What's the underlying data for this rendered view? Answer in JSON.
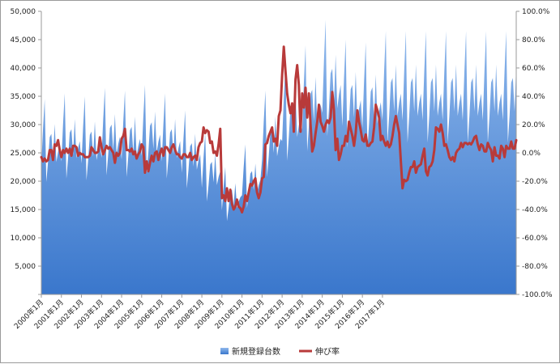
{
  "chart_data": {
    "type": "area+line",
    "title": "",
    "legend_position": "bottom",
    "grid": false,
    "colors": {
      "area_top": "#8fb8ec",
      "area_bottom": "#3a77cc",
      "line": "#b83a3a"
    },
    "left_axis": {
      "min": 0,
      "max": 50000,
      "step": 5000,
      "tick_labels": [
        "",
        "5,000",
        "10,000",
        "15,000",
        "20,000",
        "25,000",
        "30,000",
        "35,000",
        "40,000",
        "45,000",
        "50,000"
      ]
    },
    "right_axis": {
      "min": -100,
      "max": 100,
      "step": 20,
      "tick_labels": [
        "-100.0%",
        "-80.0%",
        "-60.0%",
        "-40.0%",
        "-20.0%",
        "0.0%",
        "20.0%",
        "40.0%",
        "60.0%",
        "80.0%",
        "100.0%"
      ]
    },
    "x_tick_labels": [
      "2000年1月",
      "2001年1月",
      "2002年1月",
      "2003年1月",
      "2004年1月",
      "2005年1月",
      "2006年1月",
      "2007年1月",
      "2008年1月",
      "2009年1月",
      "2010年1月",
      "2011年1月",
      "2012年1月",
      "2013年1月",
      "2014年1月",
      "2015年1月",
      "2016年1月",
      "2017年1月"
    ],
    "months_per_tick": 12,
    "series": [
      {
        "name": "新規登録台数",
        "axis": "left",
        "kind": "area",
        "annual_shape": {
          "month_factors": [
            0.78,
            1.0,
            1.18,
            0.68,
            0.8,
            0.95,
            0.97,
            0.82,
            1.03,
            0.8,
            0.86,
            0.9
          ],
          "yearly_march_peak": [
            34500,
            35500,
            35000,
            36500,
            36000,
            37000,
            35500,
            32500,
            28500,
            22500,
            26500,
            36000,
            41000,
            44000,
            48500,
            45000,
            44500,
            46500
          ]
        }
      },
      {
        "name": "伸び率",
        "axis": "right",
        "kind": "line",
        "values": [
          -3,
          -6,
          -4,
          -6,
          -5,
          2,
          2,
          -5,
          6,
          5,
          9,
          2,
          -3,
          2,
          0,
          3,
          0,
          3,
          -2,
          5,
          5,
          4,
          -2,
          0,
          -1,
          -1,
          -3,
          -3,
          -3,
          -2,
          4,
          2,
          0,
          0,
          1,
          11,
          4,
          -1,
          2,
          5,
          3,
          4,
          2,
          0,
          -7,
          0,
          -2,
          0,
          10,
          12,
          17,
          2,
          2,
          1,
          3,
          -1,
          1,
          -4,
          -1,
          1,
          6,
          4,
          -14,
          -6,
          -13,
          -7,
          -2,
          -6,
          0,
          1,
          -5,
          0,
          3,
          -2,
          4,
          4,
          2,
          0,
          4,
          6,
          2,
          -1,
          -1,
          -3,
          -4,
          -1,
          -1,
          -3,
          -3,
          0,
          -5,
          -3,
          -2,
          -5,
          4,
          7,
          8,
          18,
          14,
          16,
          15,
          7,
          8,
          0,
          1,
          -2,
          6,
          17,
          -32,
          -30,
          -34,
          -25,
          -34,
          -26,
          -36,
          -40,
          -38,
          -33,
          -38,
          -39,
          -42,
          -38,
          -30,
          -34,
          -28,
          -22,
          -23,
          -20,
          -18,
          -28,
          -32,
          -28,
          -18,
          -17,
          6,
          7,
          12,
          15,
          18,
          8,
          10,
          5,
          26,
          30,
          55,
          75,
          58,
          42,
          34,
          28,
          35,
          15,
          52,
          62,
          48,
          15,
          42,
          32,
          46,
          25,
          42,
          20,
          1,
          5,
          14,
          22,
          34,
          22,
          19,
          15,
          20,
          23,
          21,
          25,
          43,
          30,
          2,
          10,
          -5,
          -1,
          5,
          5,
          12,
          8,
          22,
          17,
          12,
          5,
          14,
          30,
          22,
          16,
          9,
          8,
          13,
          5,
          5,
          7,
          8,
          18,
          34,
          30,
          25,
          9,
          12,
          8,
          5,
          8,
          4,
          6,
          12,
          20,
          26,
          20,
          14,
          -6,
          -25,
          -19,
          -20,
          -19,
          -14,
          -10,
          -10,
          -6,
          -14,
          -10,
          -9,
          -8,
          -2,
          3,
          -13,
          -16,
          -10,
          -9,
          -6,
          2,
          18,
          17,
          15,
          20,
          14,
          5,
          6,
          2,
          -3,
          -5,
          -3,
          -6,
          0,
          2,
          3,
          7,
          4,
          7,
          7,
          6,
          7,
          6,
          8,
          11,
          12,
          6,
          2,
          6,
          5,
          1,
          1,
          7,
          4,
          2,
          -6,
          4,
          -2,
          -2,
          -4,
          5,
          3,
          -3,
          5,
          3,
          3,
          8,
          3,
          3,
          9
        ]
      }
    ]
  }
}
